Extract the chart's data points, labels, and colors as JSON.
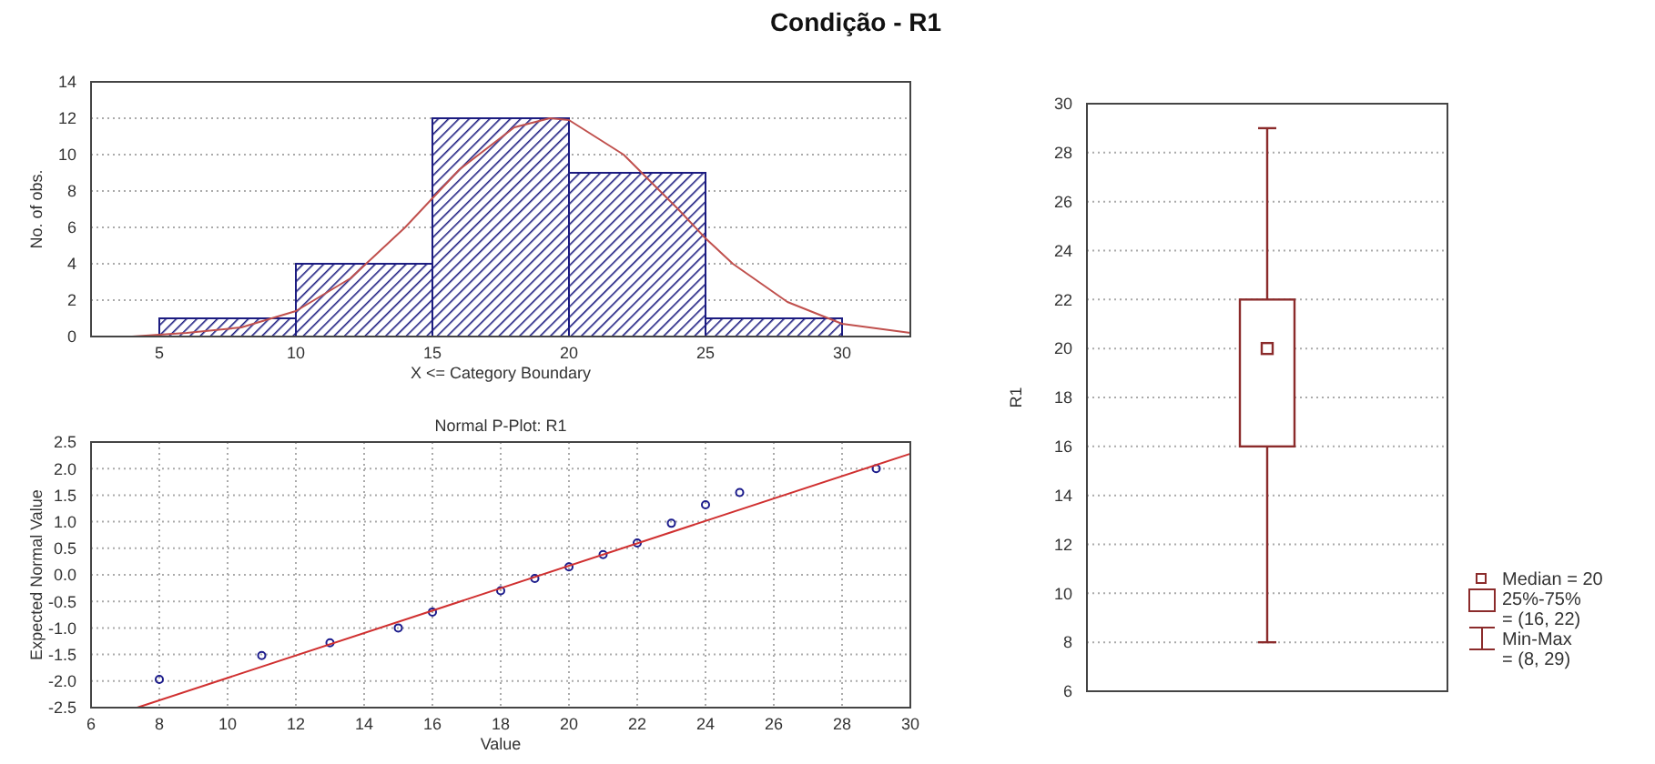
{
  "chart_data": [
    {
      "type": "histogram",
      "title": "Condição - R1",
      "xlabel": "X <= Category Boundary",
      "ylabel": "No. of obs.",
      "bins": [
        5,
        10,
        15,
        20,
        25,
        30
      ],
      "values": [
        1,
        4,
        12,
        9,
        1
      ],
      "color": "#1c1c80",
      "xlim": [
        2.5,
        32.5
      ],
      "xticks": [
        5,
        10,
        15,
        20,
        25,
        30
      ],
      "ylim": [
        0,
        14
      ],
      "yticks": [
        0,
        2,
        4,
        6,
        8,
        10,
        12,
        14
      ],
      "grid": "y",
      "series": [
        {
          "type": "line",
          "color": "#c0504d",
          "x": [
            4,
            6,
            8,
            10,
            12,
            14,
            15,
            16,
            18,
            19.3,
            20,
            22,
            24,
            25,
            26,
            28,
            30,
            32.5
          ],
          "values": [
            0,
            0.2,
            0.5,
            1.4,
            3.2,
            6,
            7.6,
            9.2,
            11.5,
            12,
            11.9,
            10,
            7,
            5.4,
            4,
            1.9,
            0.7,
            0.2
          ]
        }
      ]
    },
    {
      "type": "scatter",
      "title": "Normal P-Plot: R1",
      "xlabel": "Value",
      "ylabel": "Expected Normal Value",
      "xlim": [
        6,
        30
      ],
      "xticks": [
        6,
        8,
        10,
        12,
        14,
        16,
        18,
        20,
        22,
        24,
        26,
        28,
        30
      ],
      "ylim": [
        -2.5,
        2.5
      ],
      "yticks": [
        -2.5,
        {
          "value": -2,
          "label": "-2.0"
        },
        -1.5,
        {
          "value": -1,
          "label": "-1.0"
        },
        -0.5,
        {
          "value": 0,
          "label": "0.0"
        },
        0.5,
        {
          "value": 1,
          "label": "1.0"
        },
        1.5,
        {
          "value": 2,
          "label": "2.0"
        },
        2.5
      ],
      "grid": true,
      "series": [
        {
          "type": "scatter",
          "marker": "circle",
          "color": "#1c1c8c",
          "x": [
            8,
            11,
            13,
            15,
            16,
            18,
            19,
            20,
            21,
            22,
            23,
            24,
            25,
            29
          ],
          "values": [
            -1.97,
            -1.52,
            -1.28,
            -1.0,
            -0.7,
            -0.3,
            -0.07,
            0.15,
            0.38,
            0.6,
            0.97,
            1.32,
            1.55,
            2.0
          ]
        },
        {
          "type": "line",
          "color": "#d03030",
          "x": [
            7.35,
            30
          ],
          "values": [
            -2.5,
            2.28
          ]
        }
      ]
    },
    {
      "type": "box",
      "ylabel": "R1",
      "categories": [
        null
      ],
      "color": "#8b2b2b",
      "boxes": [
        {
          "low": 8,
          "q1": 16,
          "median": 20,
          "q3": 22,
          "high": 29
        }
      ],
      "ylim": [
        6,
        30
      ],
      "yticks": [
        6,
        8,
        10,
        12,
        14,
        16,
        18,
        20,
        22,
        24,
        26,
        28,
        30
      ],
      "grid": "y",
      "annotations": [
        "Median = 20",
        "25%-75%",
        "= (16, 22)",
        "Min-Max",
        "= (8, 29)"
      ]
    }
  ]
}
